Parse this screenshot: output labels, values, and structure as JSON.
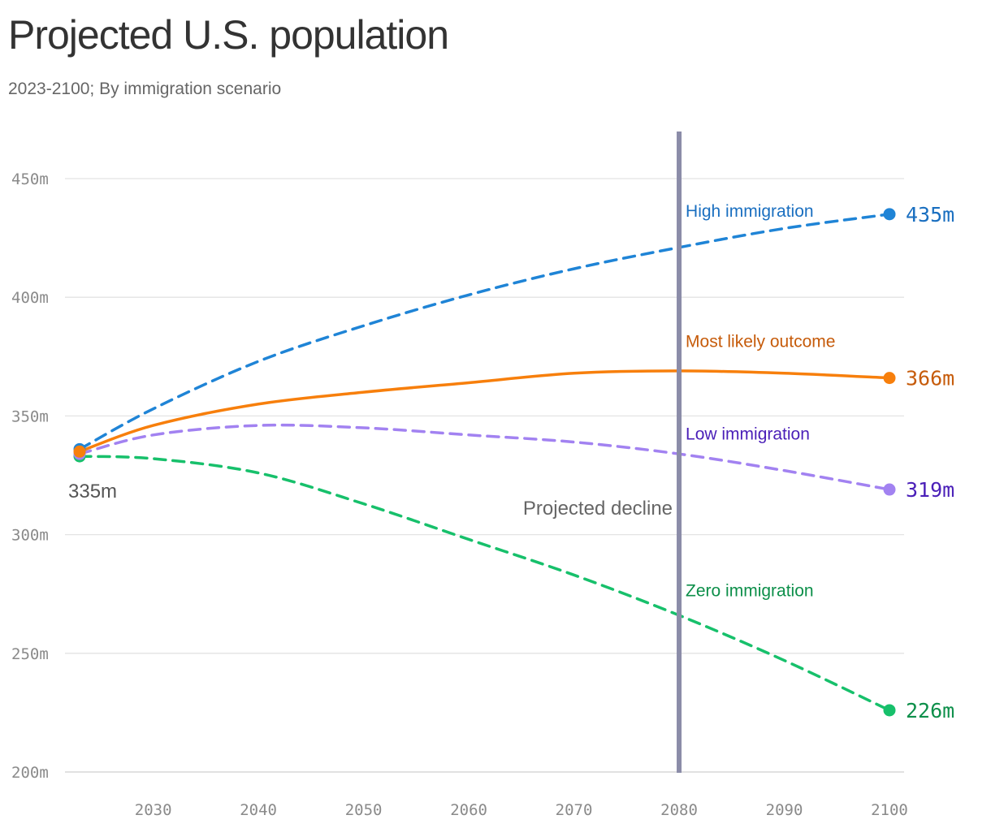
{
  "header": {
    "title": "Projected U.S. population",
    "subtitle": "2023-2100; By immigration scenario"
  },
  "chart_data": {
    "type": "line",
    "title": "Projected U.S. population",
    "subtitle": "2023-2100; By immigration scenario",
    "xlabel": "",
    "ylabel": "",
    "xlim": [
      2023,
      2100
    ],
    "ylim": [
      200,
      460
    ],
    "x_ticks": [
      2030,
      2040,
      2050,
      2060,
      2070,
      2080,
      2090,
      2100
    ],
    "x_tick_labels": [
      "2030",
      "2040",
      "2050",
      "2060",
      "2070",
      "2080",
      "2090",
      "2100"
    ],
    "y_ticks": [
      200,
      250,
      300,
      350,
      400,
      450
    ],
    "y_tick_labels": [
      "200m",
      "250m",
      "300m",
      "350m",
      "400m",
      "450m"
    ],
    "grid": "horizontal",
    "start_label": "335m",
    "annotation": {
      "text": "Projected decline",
      "x": 2080
    },
    "series": [
      {
        "name": "High immigration",
        "color": "#1f84d6",
        "label_color": "#1a6fc0",
        "dashed": true,
        "end_label": "435m",
        "x": [
          2023,
          2030,
          2040,
          2050,
          2060,
          2070,
          2080,
          2090,
          2100
        ],
        "values": [
          336,
          353,
          373,
          388,
          401,
          412,
          421,
          429,
          435
        ]
      },
      {
        "name": "Most likely outcome",
        "color": "#f77f0c",
        "label_color": "#c65b0a",
        "dashed": false,
        "end_label": "366m",
        "x": [
          2023,
          2030,
          2040,
          2050,
          2060,
          2070,
          2080,
          2090,
          2100
        ],
        "values": [
          335,
          346,
          355,
          360,
          364,
          368,
          369,
          368,
          366
        ]
      },
      {
        "name": "Low immigration",
        "color": "#a282f1",
        "label_color": "#4a1fb8",
        "dashed": true,
        "end_label": "319m",
        "x": [
          2023,
          2030,
          2040,
          2050,
          2060,
          2070,
          2080,
          2090,
          2100
        ],
        "values": [
          334,
          342,
          346,
          345,
          342,
          339,
          334,
          327,
          319
        ]
      },
      {
        "name": "Zero immigration",
        "color": "#17c06b",
        "label_color": "#0d8f4a",
        "dashed": true,
        "end_label": "226m",
        "x": [
          2023,
          2030,
          2040,
          2050,
          2060,
          2070,
          2080,
          2090,
          2100
        ],
        "values": [
          333,
          332,
          326,
          313,
          298,
          283,
          266,
          247,
          226
        ]
      }
    ]
  }
}
